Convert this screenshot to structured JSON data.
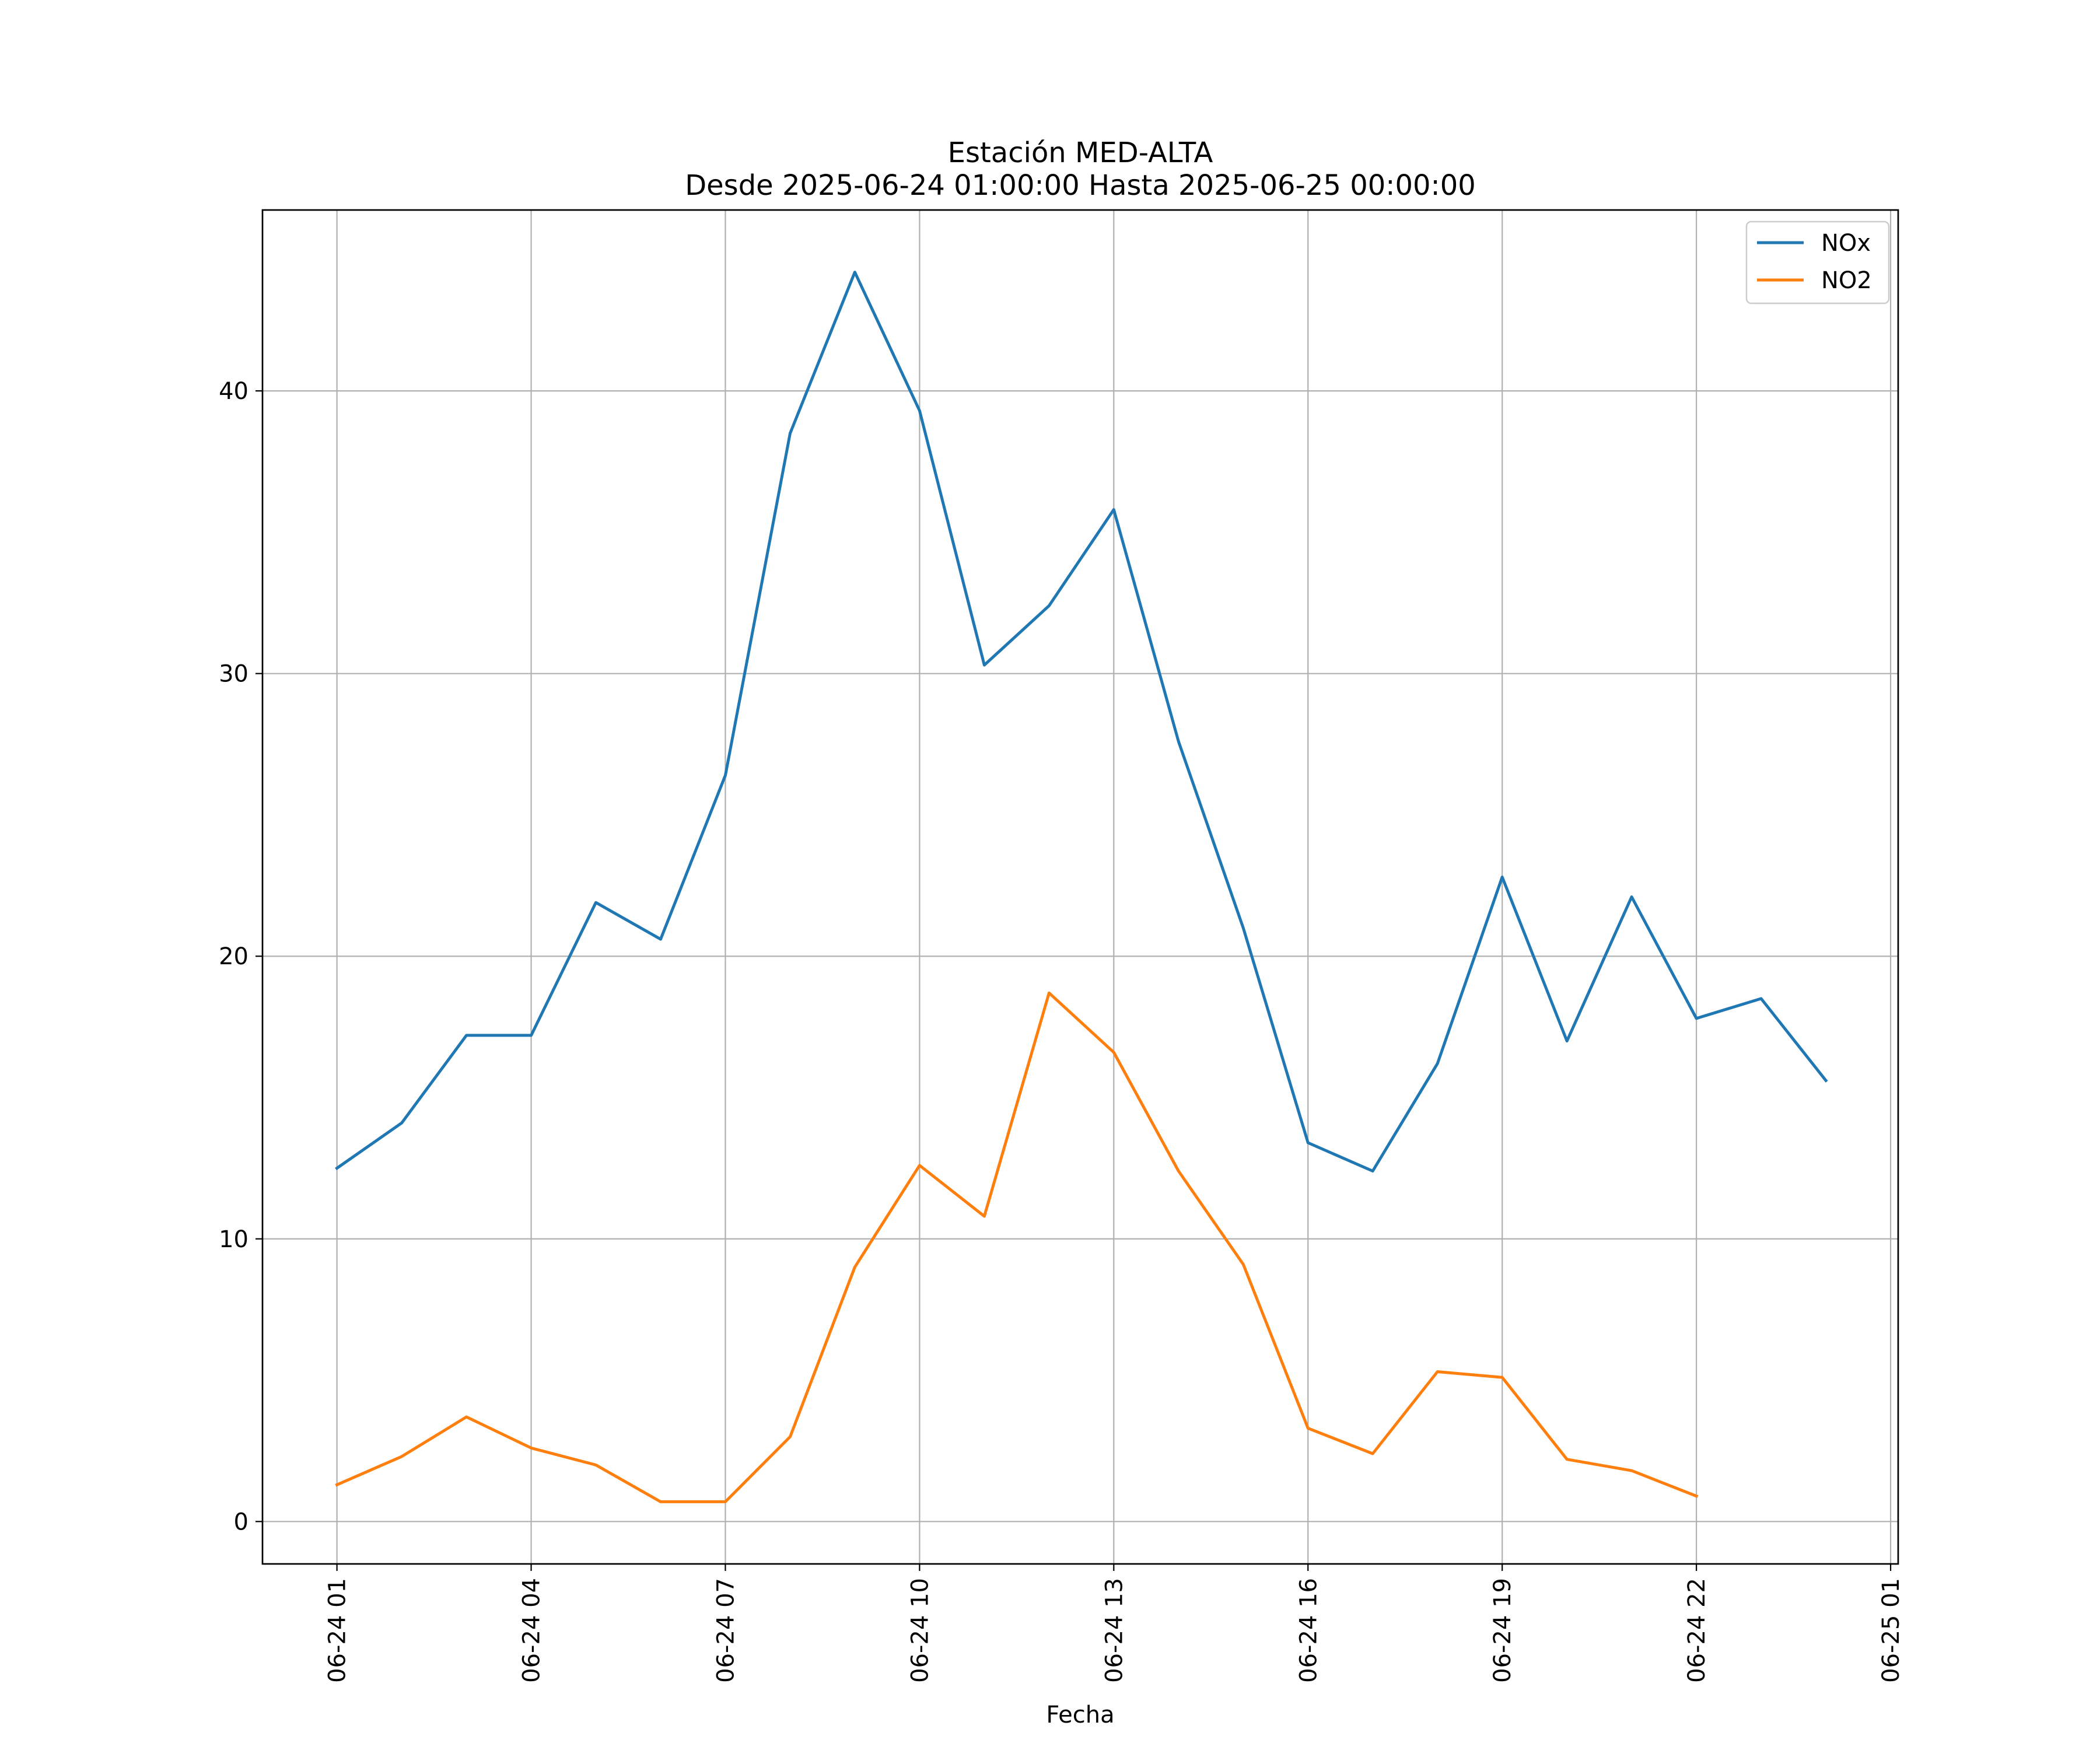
{
  "chart_data": {
    "type": "line",
    "title": "Estación MED-ALTA",
    "subtitle": "Desde 2025-06-24 01:00:00 Hasta 2025-06-25 00:00:00",
    "xlabel": "Fecha",
    "ylabel": "",
    "x": [
      "2025-06-24 01:00",
      "2025-06-24 02:00",
      "2025-06-24 03:00",
      "2025-06-24 04:00",
      "2025-06-24 05:00",
      "2025-06-24 06:00",
      "2025-06-24 07:00",
      "2025-06-24 08:00",
      "2025-06-24 09:00",
      "2025-06-24 10:00",
      "2025-06-24 11:00",
      "2025-06-24 12:00",
      "2025-06-24 13:00",
      "2025-06-24 14:00",
      "2025-06-24 15:00",
      "2025-06-24 16:00",
      "2025-06-24 17:00",
      "2025-06-24 18:00",
      "2025-06-24 19:00",
      "2025-06-24 20:00",
      "2025-06-24 21:00",
      "2025-06-24 22:00",
      "2025-06-24 23:00",
      "2025-06-25 00:00"
    ],
    "series": [
      {
        "name": "NOx",
        "color": "#1f77b4",
        "values": [
          12.5,
          14.1,
          17.2,
          17.2,
          21.9,
          20.6,
          26.4,
          38.5,
          44.2,
          39.3,
          30.3,
          32.4,
          35.8,
          27.6,
          21.0,
          13.4,
          12.4,
          16.2,
          22.8,
          17.0,
          22.1,
          17.8,
          18.5,
          15.6
        ]
      },
      {
        "name": "NO2",
        "color": "#ff7f0e",
        "values": [
          1.3,
          2.3,
          3.7,
          2.6,
          2.0,
          0.7,
          0.7,
          3.0,
          9.0,
          12.6,
          10.8,
          18.7,
          16.6,
          12.4,
          9.1,
          3.3,
          2.4,
          5.3,
          5.1,
          2.2,
          1.8,
          0.9,
          null,
          null
        ]
      }
    ],
    "x_ticks": [
      "06-24 01",
      "06-24 04",
      "06-24 07",
      "06-24 10",
      "06-24 13",
      "06-24 16",
      "06-24 19",
      "06-24 22",
      "06-25 01"
    ],
    "x_tick_values": [
      "2025-06-24 01:00",
      "2025-06-24 04:00",
      "2025-06-24 07:00",
      "2025-06-24 10:00",
      "2025-06-24 13:00",
      "2025-06-24 16:00",
      "2025-06-24 19:00",
      "2025-06-24 22:00",
      "2025-06-25 01:00"
    ],
    "xlim": [
      "2025-06-23 23:51",
      "2025-06-25 01:07"
    ],
    "y_ticks": [
      0,
      10,
      20,
      30,
      40
    ],
    "ylim": [
      -1.5,
      46.4
    ],
    "grid": true,
    "legend_position": "top-right"
  }
}
